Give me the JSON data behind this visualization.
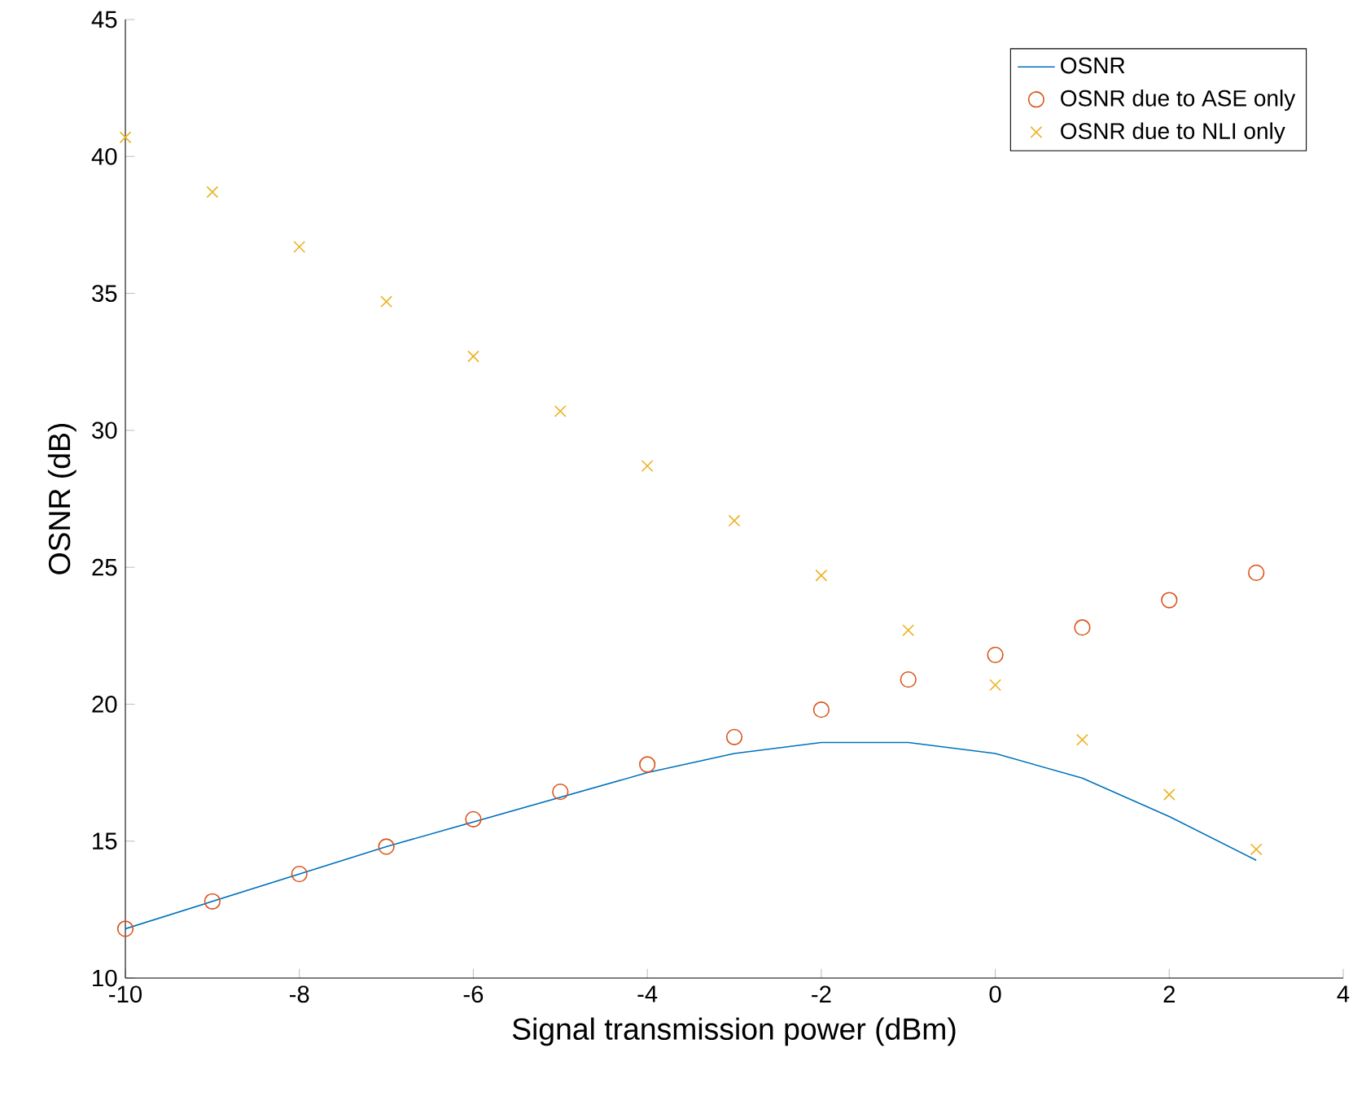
{
  "chart_data": {
    "type": "line",
    "xlabel": "Signal transmission power (dBm)",
    "ylabel": "OSNR (dB)",
    "x": [
      -10,
      -9,
      -8,
      -7,
      -6,
      -5,
      -4,
      -3,
      -2,
      -1,
      0,
      1,
      2,
      3
    ],
    "xlim": [
      -10,
      4
    ],
    "xticks": [
      -10,
      -8,
      -6,
      -4,
      -2,
      0,
      2,
      4
    ],
    "ylim": [
      10,
      45
    ],
    "yticks": [
      10,
      15,
      20,
      25,
      30,
      35,
      40,
      45
    ],
    "grid": false,
    "legend": "top right",
    "series": [
      {
        "name": "OSNR",
        "marker": "none",
        "line_style": "solid",
        "color": "#0072bd",
        "values": [
          11.8,
          12.8,
          13.8,
          14.8,
          15.7,
          16.6,
          17.5,
          18.2,
          18.6,
          18.6,
          18.2,
          17.3,
          15.9,
          14.3
        ]
      },
      {
        "name": "OSNR due to ASE only",
        "type": "scatter",
        "marker": "circle",
        "color": "#d95319",
        "values": [
          11.8,
          12.8,
          13.8,
          14.8,
          15.8,
          16.8,
          17.8,
          18.8,
          19.8,
          20.9,
          21.8,
          22.8,
          23.8,
          24.8
        ]
      },
      {
        "name": "OSNR due to NLI only",
        "type": "scatter",
        "marker": "cross",
        "color": "#edb120",
        "values": [
          40.7,
          38.7,
          36.7,
          34.7,
          32.7,
          30.7,
          28.7,
          26.7,
          24.7,
          22.7,
          20.7,
          18.7,
          16.7,
          14.7
        ]
      }
    ]
  }
}
